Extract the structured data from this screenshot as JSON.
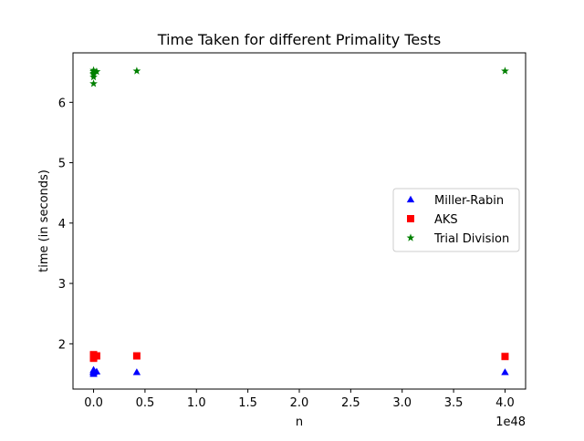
{
  "chart_data": {
    "type": "scatter",
    "title": "Time Taken for different Primality Tests",
    "xlabel": "n",
    "ylabel": "time (in seconds)",
    "x_offset_label": "1e48",
    "x_scale_exponent": 48,
    "xlim": [
      -0.2,
      4.2
    ],
    "ylim": [
      1.25,
      6.82
    ],
    "xticks": [
      0.0,
      0.5,
      1.0,
      1.5,
      2.0,
      2.5,
      3.0,
      3.5,
      4.0
    ],
    "xtick_labels": [
      "0.0",
      "0.5",
      "1.0",
      "1.5",
      "2.0",
      "2.5",
      "3.0",
      "3.5",
      "4.0"
    ],
    "yticks": [
      2,
      3,
      4,
      5,
      6
    ],
    "ytick_labels": [
      "2",
      "3",
      "4",
      "5",
      "6"
    ],
    "grid": false,
    "legend_position": "center-right",
    "series": [
      {
        "name": "Miller-Rabin",
        "marker": "triangle",
        "color": "#0000ff",
        "points": [
          [
            0.0,
            1.5
          ],
          [
            0.0,
            1.52
          ],
          [
            0.0,
            1.53
          ],
          [
            0.0,
            1.55
          ],
          [
            0.0,
            1.57
          ],
          [
            0.0,
            1.54
          ],
          [
            0.03,
            1.54
          ],
          [
            0.42,
            1.53
          ],
          [
            4.0,
            1.53
          ]
        ]
      },
      {
        "name": "AKS",
        "marker": "square",
        "color": "#ff0000",
        "points": [
          [
            0.0,
            1.76
          ],
          [
            0.0,
            1.78
          ],
          [
            0.0,
            1.8
          ],
          [
            0.0,
            1.82
          ],
          [
            0.0,
            1.79
          ],
          [
            0.03,
            1.8
          ],
          [
            0.42,
            1.8
          ],
          [
            4.0,
            1.79
          ]
        ]
      },
      {
        "name": "Trial Division",
        "marker": "star",
        "color": "#008000",
        "points": [
          [
            0.0,
            6.31
          ],
          [
            0.0,
            6.42
          ],
          [
            0.0,
            6.46
          ],
          [
            0.0,
            6.48
          ],
          [
            0.0,
            6.51
          ],
          [
            0.0,
            6.53
          ],
          [
            0.03,
            6.51
          ],
          [
            0.42,
            6.52
          ],
          [
            4.0,
            6.52
          ]
        ]
      }
    ]
  }
}
